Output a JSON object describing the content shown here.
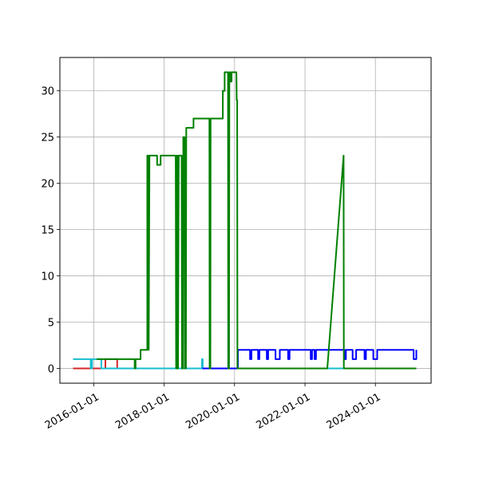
{
  "chart_data": {
    "type": "line",
    "title": "",
    "xlabel": "",
    "ylabel": "",
    "x_axis": {
      "type": "date",
      "range": [
        "2015-01-15",
        "2025-08-01"
      ],
      "ticks": [
        "2016-01-01",
        "2018-01-01",
        "2020-01-01",
        "2022-01-01",
        "2024-01-01"
      ],
      "tick_labels": [
        "2016-01-01",
        "2018-01-01",
        "2020-01-01",
        "2022-01-01",
        "2024-01-01"
      ]
    },
    "y_axis": {
      "range": [
        -1.6,
        33.6
      ],
      "ticks": [
        0,
        5,
        10,
        15,
        20,
        25,
        30
      ],
      "tick_labels": [
        "0",
        "5",
        "10",
        "15",
        "20",
        "25",
        "30"
      ]
    },
    "grid": true,
    "legend": null,
    "series": [
      {
        "color": "#d62728",
        "step": true,
        "points": [
          [
            "2015-06-01",
            0
          ],
          [
            "2016-05-01",
            0
          ],
          [
            "2016-05-01",
            1
          ],
          [
            "2016-09-01",
            1
          ],
          [
            "2016-09-01",
            0
          ],
          [
            "2025-03-01",
            0
          ]
        ]
      },
      {
        "color": "#17becf",
        "step": true,
        "points": [
          [
            "2015-06-01",
            1
          ],
          [
            "2015-12-01",
            1
          ],
          [
            "2015-12-01",
            0
          ],
          [
            "2015-12-15",
            0
          ],
          [
            "2015-12-15",
            1
          ],
          [
            "2016-03-20",
            1
          ],
          [
            "2016-03-20",
            0
          ],
          [
            "2019-01-28",
            0
          ],
          [
            "2019-01-28",
            1
          ],
          [
            "2019-02-05",
            1
          ],
          [
            "2019-02-05",
            0
          ],
          [
            "2025-03-01",
            0
          ]
        ]
      },
      {
        "color": "#0000ff",
        "step": true,
        "points": [
          [
            "2019-02-01",
            0
          ],
          [
            "2020-02-05",
            0
          ],
          [
            "2020-02-05",
            2
          ],
          [
            "2020-06-10",
            2
          ],
          [
            "2020-06-10",
            1
          ],
          [
            "2020-06-25",
            1
          ],
          [
            "2020-06-25",
            2
          ],
          [
            "2020-09-01",
            2
          ],
          [
            "2020-09-01",
            1
          ],
          [
            "2020-09-15",
            1
          ],
          [
            "2020-09-15",
            2
          ],
          [
            "2020-12-01",
            2
          ],
          [
            "2020-12-01",
            1
          ],
          [
            "2020-12-15",
            1
          ],
          [
            "2020-12-15",
            2
          ],
          [
            "2021-03-01",
            2
          ],
          [
            "2021-03-01",
            1
          ],
          [
            "2021-04-15",
            1
          ],
          [
            "2021-04-15",
            2
          ],
          [
            "2021-07-10",
            2
          ],
          [
            "2021-07-10",
            1
          ],
          [
            "2021-07-25",
            1
          ],
          [
            "2021-07-25",
            2
          ],
          [
            "2022-03-01",
            2
          ],
          [
            "2022-03-01",
            1
          ],
          [
            "2022-03-15",
            1
          ],
          [
            "2022-03-15",
            2
          ],
          [
            "2022-04-10",
            2
          ],
          [
            "2022-04-10",
            1
          ],
          [
            "2022-04-25",
            1
          ],
          [
            "2022-04-25",
            2
          ],
          [
            "2023-02-15",
            2
          ],
          [
            "2023-02-15",
            1
          ],
          [
            "2023-03-01",
            1
          ],
          [
            "2023-03-01",
            2
          ],
          [
            "2023-05-10",
            2
          ],
          [
            "2023-05-10",
            1
          ],
          [
            "2023-06-15",
            1
          ],
          [
            "2023-06-15",
            2
          ],
          [
            "2023-09-10",
            2
          ],
          [
            "2023-09-10",
            1
          ],
          [
            "2023-09-25",
            1
          ],
          [
            "2023-09-25",
            2
          ],
          [
            "2023-12-10",
            2
          ],
          [
            "2023-12-10",
            1
          ],
          [
            "2024-01-20",
            1
          ],
          [
            "2024-01-20",
            2
          ],
          [
            "2025-02-01",
            2
          ],
          [
            "2025-02-01",
            1
          ],
          [
            "2025-03-01",
            1
          ],
          [
            "2025-03-01",
            2
          ]
        ]
      },
      {
        "color": "#008000",
        "step": false,
        "points": [
          [
            "2016-02-01",
            1
          ],
          [
            "2017-03-01",
            1
          ],
          [
            "2017-03-01",
            0
          ],
          [
            "2017-03-10",
            0
          ],
          [
            "2017-03-10",
            1
          ],
          [
            "2017-05-01",
            1
          ],
          [
            "2017-05-01",
            2
          ],
          [
            "2017-07-10",
            2
          ],
          [
            "2017-07-10",
            23
          ],
          [
            "2017-07-20",
            23
          ],
          [
            "2017-07-25",
            2
          ],
          [
            "2017-08-01",
            23
          ],
          [
            "2017-10-20",
            23
          ],
          [
            "2017-10-20",
            22
          ],
          [
            "2017-11-25",
            22
          ],
          [
            "2017-11-25",
            23
          ],
          [
            "2018-05-01",
            23
          ],
          [
            "2018-05-05",
            0
          ],
          [
            "2018-05-10",
            23
          ],
          [
            "2018-05-15",
            0
          ],
          [
            "2018-05-20",
            23
          ],
          [
            "2018-05-25",
            0
          ],
          [
            "2018-06-01",
            23
          ],
          [
            "2018-07-01",
            23
          ],
          [
            "2018-07-05",
            0
          ],
          [
            "2018-07-15",
            0
          ],
          [
            "2018-07-18",
            25
          ],
          [
            "2018-08-01",
            25
          ],
          [
            "2018-08-05",
            0
          ],
          [
            "2018-08-15",
            0
          ],
          [
            "2018-08-18",
            26
          ],
          [
            "2018-11-01",
            26
          ],
          [
            "2018-11-01",
            27
          ],
          [
            "2019-04-15",
            27
          ],
          [
            "2019-04-18",
            0
          ],
          [
            "2019-04-25",
            0
          ],
          [
            "2019-04-28",
            27
          ],
          [
            "2019-09-01",
            27
          ],
          [
            "2019-09-01",
            30
          ],
          [
            "2019-09-20",
            30
          ],
          [
            "2019-09-20",
            32
          ],
          [
            "2019-10-25",
            32
          ],
          [
            "2019-10-28",
            0
          ],
          [
            "2019-11-05",
            0
          ],
          [
            "2019-11-08",
            32
          ],
          [
            "2019-11-20",
            32
          ],
          [
            "2019-11-20",
            31
          ],
          [
            "2019-12-01",
            31
          ],
          [
            "2019-12-01",
            32
          ],
          [
            "2020-01-20",
            32
          ],
          [
            "2020-01-23",
            29
          ],
          [
            "2020-01-28",
            29
          ],
          [
            "2020-01-31",
            0
          ],
          [
            "2022-08-20",
            0
          ],
          [
            "2023-02-05",
            23
          ],
          [
            "2023-02-08",
            0
          ],
          [
            "2025-03-01",
            0
          ]
        ]
      }
    ]
  }
}
